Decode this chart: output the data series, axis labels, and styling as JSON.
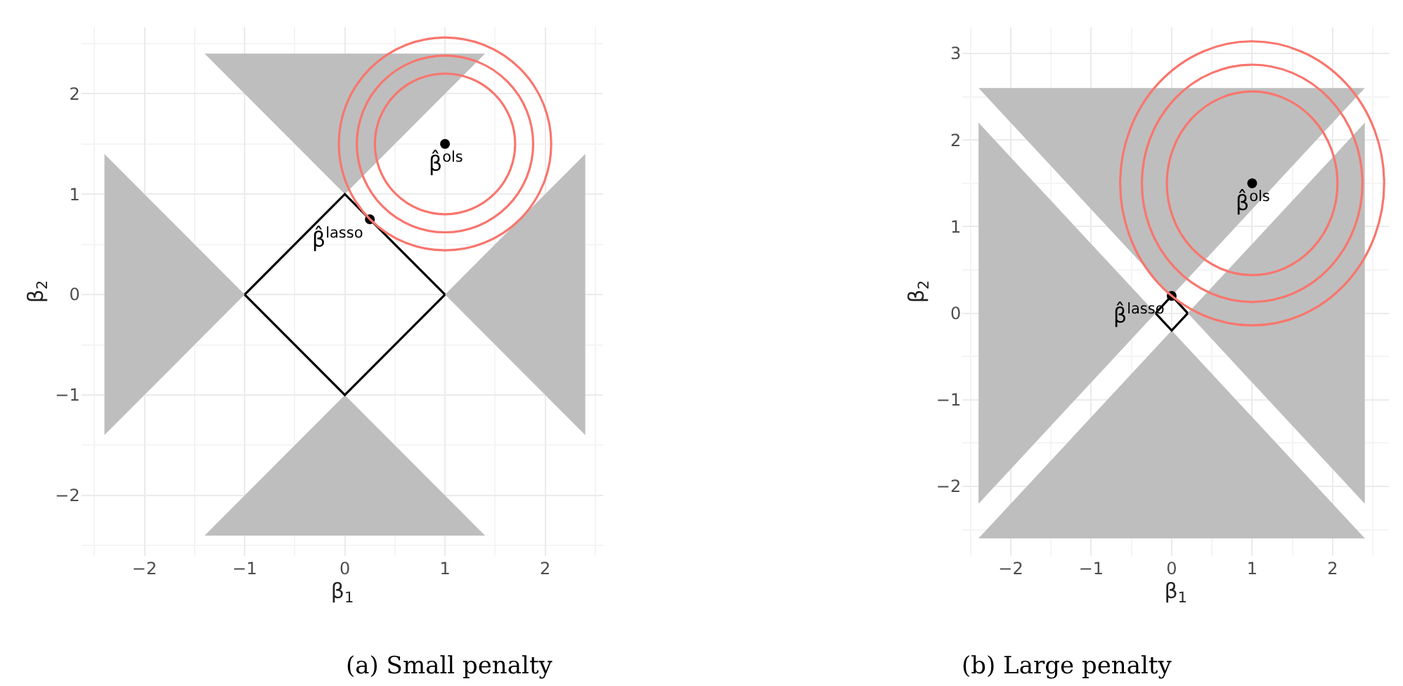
{
  "chart_data": [
    {
      "type": "line",
      "xlabel": "β$_{1}$",
      "ylabel": "β$_{2}$",
      "grid": true,
      "xlim": [
        -2.63,
        2.58
      ],
      "ylim": [
        -2.6,
        2.66
      ],
      "xticks": [
        -2,
        -1,
        0,
        1,
        2
      ],
      "yticks": [
        -2,
        -1,
        0,
        1,
        2
      ],
      "series": [
        {
          "type": "area",
          "color": "#bebebe",
          "x": [
            -2.4,
            -1,
            -2.4
          ],
          "values": [
            1.4,
            0,
            -1.4
          ]
        },
        {
          "type": "area",
          "color": "#bebebe",
          "x": [
            2.4,
            1,
            2.4
          ],
          "values": [
            1.4,
            0,
            -1.4
          ]
        },
        {
          "type": "area",
          "color": "#bebebe",
          "x": [
            -1.4,
            0,
            1.4
          ],
          "values": [
            -2.4,
            -1,
            -2.4
          ]
        },
        {
          "type": "area",
          "color": "#bebebe",
          "x": [
            -1.4,
            0,
            1.4
          ],
          "values": [
            2.4,
            1,
            2.4
          ]
        },
        {
          "color": "#000000",
          "x": [
            -1,
            0,
            1
          ],
          "values": [
            0,
            1,
            0
          ]
        },
        {
          "color": "#000000",
          "x": [
            -1,
            0,
            1
          ],
          "values": [
            0,
            -1,
            0
          ]
        },
        {
          "type": "scatter",
          "color": "#000000",
          "x": [
            1,
            0.25
          ],
          "values": [
            1.5,
            0.75
          ]
        }
      ],
      "annotations": [
        {
          "text": "β̂$^{ols}$",
          "x": 1,
          "y": 1.5
        },
        {
          "text": "β̂$^{lasso}$",
          "x": 0.25,
          "y": 0.75
        },
        "(a) Small penalty"
      ]
    },
    {
      "type": "line",
      "xlabel": "β$_{1}$",
      "ylabel": "β$_{2}$",
      "grid": true,
      "xlim": [
        -2.6,
        2.7
      ],
      "ylim": [
        -2.8,
        3.3
      ],
      "xticks": [
        -2,
        -1,
        0,
        1,
        2
      ],
      "yticks": [
        -2,
        -1,
        0,
        1,
        2,
        3
      ],
      "series": [
        {
          "type": "area",
          "color": "#bebebe",
          "x": [
            -2.4,
            -0.2,
            -2.4
          ],
          "values": [
            2.2,
            0,
            -2.2
          ]
        },
        {
          "type": "area",
          "color": "#bebebe",
          "x": [
            2.4,
            0.2,
            2.4
          ],
          "values": [
            2.2,
            0,
            -2.2
          ]
        },
        {
          "type": "area",
          "color": "#bebebe",
          "x": [
            -2.4,
            0,
            2.4
          ],
          "values": [
            2.6,
            0.2,
            2.6
          ]
        },
        {
          "type": "area",
          "color": "#bebebe",
          "x": [
            -2.4,
            0,
            2.4
          ],
          "values": [
            -2.6,
            -0.2,
            -2.6
          ]
        },
        {
          "color": "#000000",
          "x": [
            -0.2,
            0,
            0.2
          ],
          "values": [
            0,
            0.2,
            0
          ]
        },
        {
          "color": "#000000",
          "x": [
            -0.2,
            0,
            0.2
          ],
          "values": [
            0,
            -0.2,
            0
          ]
        },
        {
          "type": "scatter",
          "color": "#000000",
          "x": [
            1,
            0
          ],
          "values": [
            1.5,
            0.2
          ]
        }
      ],
      "annotations": [
        {
          "text": "β̂$^{ols}$",
          "x": 1,
          "y": 1.5
        },
        {
          "text": "β̂$^{lasso}$",
          "x": 0,
          "y": 0.2
        },
        "(b) Large penalty"
      ]
    }
  ]
}
